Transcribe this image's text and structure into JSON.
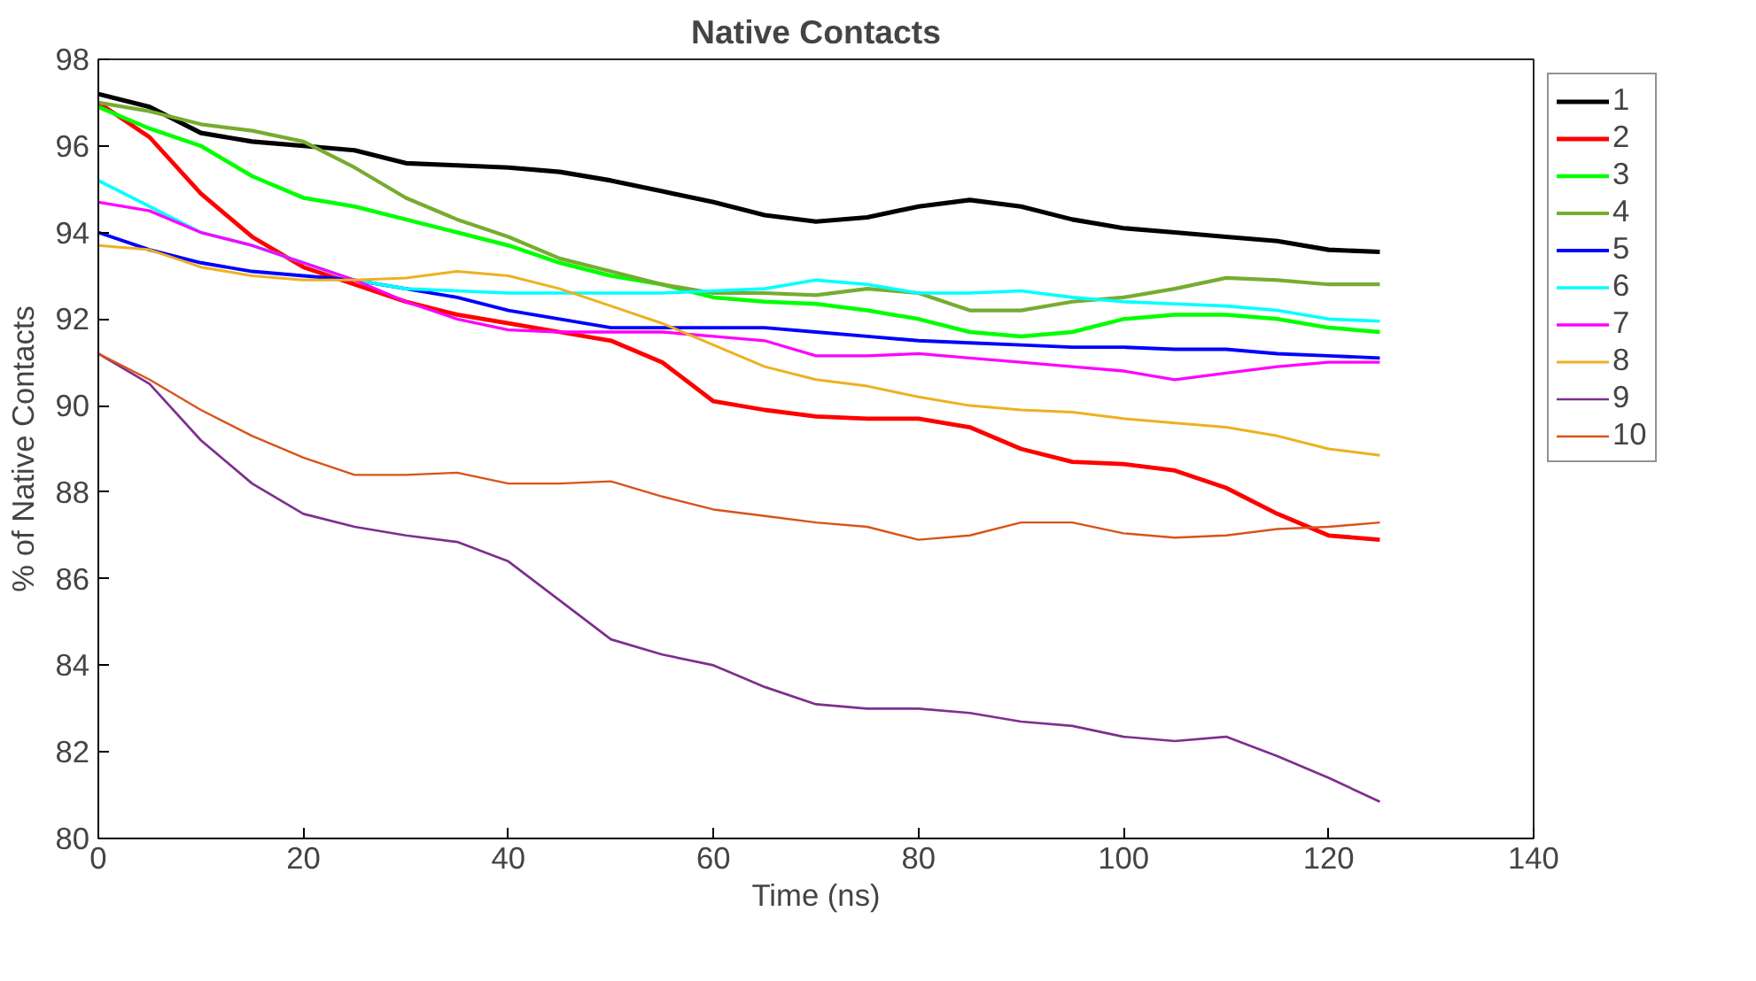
{
  "chart_data": {
    "type": "line",
    "title": "Native Contacts",
    "xlabel": "Time (ns)",
    "ylabel": "% of Native Contacts",
    "x": [
      0,
      5,
      10,
      15,
      20,
      25,
      30,
      35,
      40,
      45,
      50,
      55,
      60,
      65,
      70,
      75,
      80,
      85,
      90,
      95,
      100,
      105,
      110,
      115,
      120,
      125
    ],
    "xlim": [
      0,
      140
    ],
    "xticks": [
      0,
      20,
      40,
      60,
      80,
      100,
      120,
      140
    ],
    "ylim": [
      80,
      98
    ],
    "yticks": [
      80,
      82,
      84,
      86,
      88,
      90,
      92,
      94,
      96,
      98
    ],
    "grid": false,
    "legend": "right",
    "line_style": "solid",
    "marker": "none",
    "series": [
      {
        "name": "1",
        "color": "#000000",
        "values": [
          97.2,
          96.9,
          96.3,
          96.1,
          96.0,
          95.9,
          95.6,
          95.55,
          95.5,
          95.4,
          95.2,
          94.95,
          94.7,
          94.4,
          94.25,
          94.35,
          94.6,
          94.75,
          94.6,
          94.3,
          94.1,
          94.0,
          93.9,
          93.8,
          93.6,
          93.55
        ]
      },
      {
        "name": "2",
        "color": "#ff0000",
        "values": [
          97.0,
          96.2,
          94.9,
          93.9,
          93.2,
          92.8,
          92.4,
          92.1,
          91.9,
          91.7,
          91.5,
          91.0,
          90.1,
          89.9,
          89.75,
          89.7,
          89.7,
          89.5,
          89.0,
          88.7,
          88.65,
          88.5,
          88.1,
          87.5,
          87.0,
          86.9
        ]
      },
      {
        "name": "3",
        "color": "#00ff00",
        "values": [
          96.9,
          96.4,
          96.0,
          95.3,
          94.8,
          94.6,
          94.3,
          94.0,
          93.7,
          93.3,
          93.0,
          92.8,
          92.5,
          92.4,
          92.35,
          92.2,
          92.0,
          91.7,
          91.6,
          91.7,
          92.0,
          92.1,
          92.1,
          92.0,
          91.8,
          91.7
        ]
      },
      {
        "name": "4",
        "color": "#77ac30",
        "values": [
          97.0,
          96.8,
          96.5,
          96.35,
          96.1,
          95.5,
          94.8,
          94.3,
          93.9,
          93.4,
          93.1,
          92.8,
          92.6,
          92.6,
          92.55,
          92.7,
          92.6,
          92.2,
          92.2,
          92.4,
          92.5,
          92.7,
          92.95,
          92.9,
          92.8,
          92.8
        ]
      },
      {
        "name": "5",
        "color": "#0000ff",
        "values": [
          94.0,
          93.6,
          93.3,
          93.1,
          93.0,
          92.9,
          92.7,
          92.5,
          92.2,
          92.0,
          91.8,
          91.8,
          91.8,
          91.8,
          91.7,
          91.6,
          91.5,
          91.45,
          91.4,
          91.35,
          91.35,
          91.3,
          91.3,
          91.2,
          91.15,
          91.1
        ]
      },
      {
        "name": "6",
        "color": "#00ffff",
        "values": [
          95.2,
          94.6,
          94.0,
          93.7,
          93.3,
          92.9,
          92.7,
          92.65,
          92.6,
          92.6,
          92.6,
          92.6,
          92.65,
          92.7,
          92.9,
          92.8,
          92.6,
          92.6,
          92.65,
          92.5,
          92.4,
          92.35,
          92.3,
          92.2,
          92.0,
          91.95
        ]
      },
      {
        "name": "7",
        "color": "#ff00ff",
        "values": [
          94.7,
          94.5,
          94.0,
          93.7,
          93.3,
          92.9,
          92.4,
          92.0,
          91.75,
          91.7,
          91.7,
          91.7,
          91.6,
          91.5,
          91.15,
          91.15,
          91.2,
          91.1,
          91.0,
          90.9,
          90.8,
          90.6,
          90.75,
          90.9,
          91.0,
          91.0
        ]
      },
      {
        "name": "8",
        "color": "#edb120",
        "values": [
          93.7,
          93.6,
          93.2,
          93.0,
          92.9,
          92.9,
          92.95,
          93.1,
          93.0,
          92.7,
          92.3,
          91.9,
          91.4,
          90.9,
          90.6,
          90.45,
          90.2,
          90.0,
          89.9,
          89.85,
          89.7,
          89.6,
          89.5,
          89.3,
          89.0,
          88.85
        ]
      },
      {
        "name": "9",
        "color": "#7e2f8e",
        "values": [
          91.2,
          90.5,
          89.2,
          88.2,
          87.5,
          87.2,
          87.0,
          86.85,
          86.4,
          85.5,
          84.6,
          84.25,
          84.0,
          83.5,
          83.1,
          83.0,
          83.0,
          82.9,
          82.7,
          82.6,
          82.35,
          82.25,
          82.35,
          81.9,
          81.4,
          80.85
        ]
      },
      {
        "name": "10",
        "color": "#d95319",
        "values": [
          91.2,
          90.6,
          89.9,
          89.3,
          88.8,
          88.4,
          88.4,
          88.45,
          88.2,
          88.2,
          88.25,
          87.9,
          87.6,
          87.45,
          87.3,
          87.2,
          86.9,
          87.0,
          87.3,
          87.3,
          87.05,
          86.95,
          87.0,
          87.15,
          87.2,
          87.3
        ]
      }
    ]
  }
}
